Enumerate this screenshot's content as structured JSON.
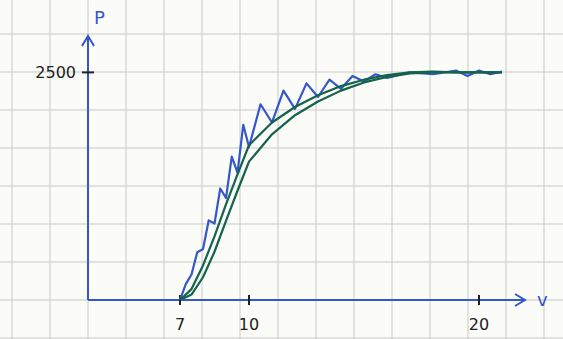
{
  "chart_data": {
    "type": "line",
    "x_label": "v",
    "y_label": "P",
    "xlim": [
      3,
      22
    ],
    "ylim": [
      0,
      2900
    ],
    "xticks": [
      7,
      10,
      20
    ],
    "yticks": [
      2500
    ],
    "grid": true,
    "series": [
      {
        "color": "#3557c9",
        "line_style": "solid",
        "x": [
          7,
          7.25,
          7.5,
          7.75,
          8,
          8.25,
          8.5,
          8.75,
          9,
          9.25,
          9.5,
          9.75,
          10,
          10.5,
          11,
          11.5,
          12,
          12.5,
          13,
          13.5,
          14,
          14.5,
          15,
          15.5,
          16,
          17,
          18,
          19,
          19.5,
          20,
          20.5,
          21
        ],
        "values": [
          0,
          175,
          280,
          525,
          560,
          875,
          840,
          1225,
          1120,
          1575,
          1400,
          1925,
          1680,
          2150,
          1950,
          2300,
          2100,
          2380,
          2230,
          2420,
          2320,
          2460,
          2400,
          2480,
          2440,
          2500,
          2480,
          2520,
          2460,
          2520,
          2480,
          2510
        ]
      },
      {
        "color": "#14634c",
        "line_style": "solid",
        "x": [
          7,
          7.5,
          8,
          8.5,
          9,
          9.5,
          10,
          11,
          12,
          13,
          14,
          15,
          16,
          17,
          18,
          19,
          20,
          21
        ],
        "values": [
          0,
          120,
          380,
          700,
          1050,
          1380,
          1700,
          1950,
          2120,
          2250,
          2350,
          2420,
          2470,
          2500,
          2510,
          2500,
          2500,
          2500
        ]
      },
      {
        "color": "#14634c",
        "line_style": "solid",
        "x": [
          7,
          7.5,
          8,
          8.5,
          9,
          9.5,
          10,
          11,
          12,
          13,
          14,
          15,
          16,
          17,
          18,
          19,
          20,
          21
        ],
        "values": [
          0,
          60,
          250,
          530,
          870,
          1200,
          1520,
          1820,
          2030,
          2180,
          2300,
          2390,
          2450,
          2490,
          2500,
          2500,
          2500,
          2500
        ]
      }
    ]
  }
}
